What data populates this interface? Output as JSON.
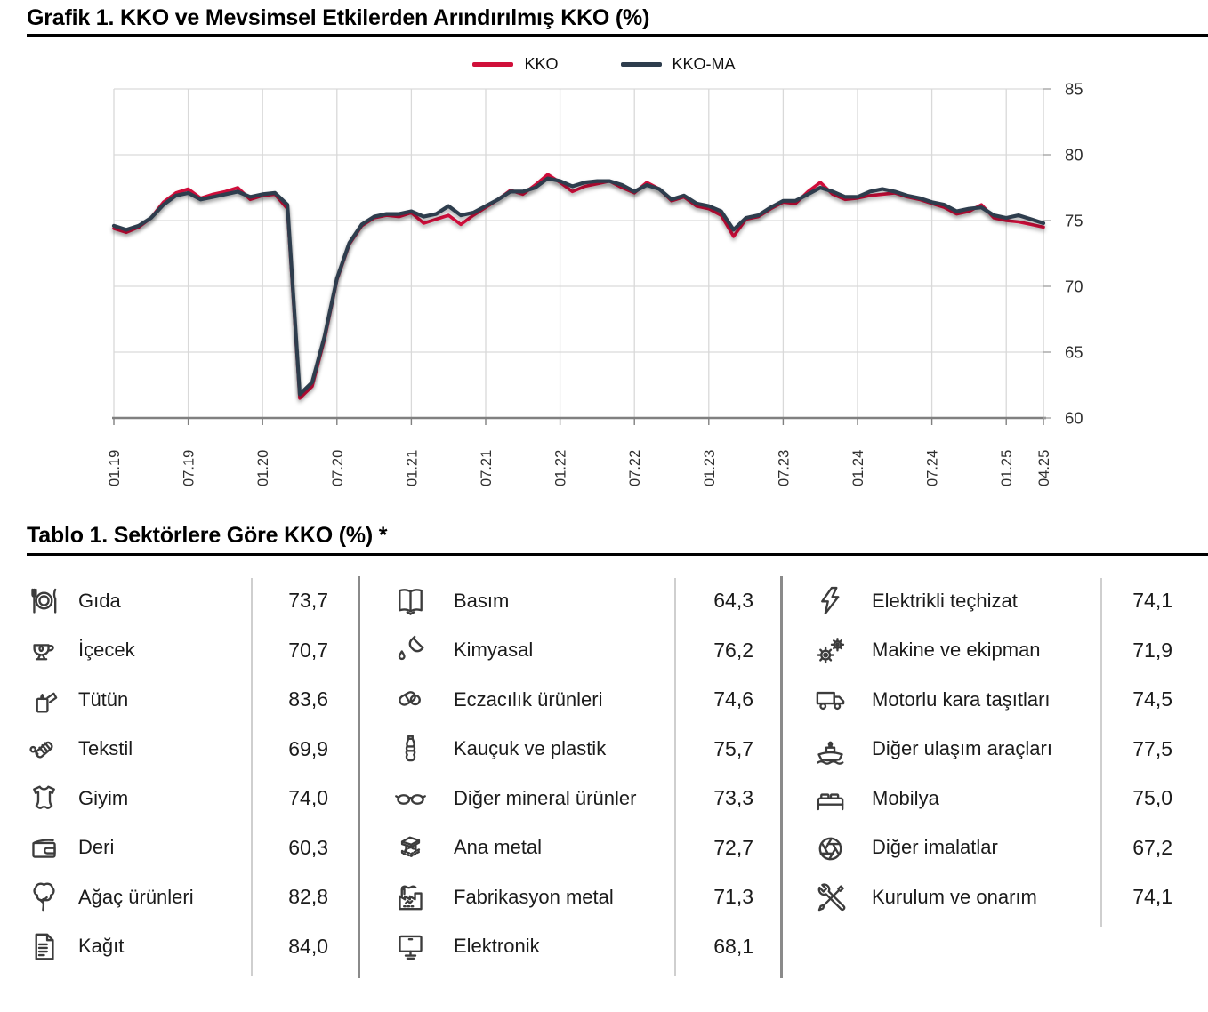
{
  "chart": {
    "title": "Grafik 1. KKO ve Mevsimsel Etkilerden Arındırılmış KKO (%)",
    "legend": [
      {
        "label": "KKO",
        "color": "#d0103a"
      },
      {
        "label": "KKO-MA",
        "color": "#2e3d4d"
      }
    ]
  },
  "chart_data": {
    "type": "line",
    "title": "Grafik 1. KKO ve Mevsimsel Etkilerden Arındırılmış KKO (%)",
    "x_tick_labels": [
      "01.19",
      "07.19",
      "01.20",
      "07.20",
      "01.21",
      "07.21",
      "01.22",
      "07.22",
      "01.23",
      "07.23",
      "01.24",
      "07.24",
      "01.25",
      "04.25"
    ],
    "x_tick_months": [
      0,
      6,
      12,
      18,
      24,
      30,
      36,
      42,
      48,
      54,
      60,
      66,
      72,
      75
    ],
    "ylim": [
      60,
      85
    ],
    "yticks": [
      60,
      65,
      70,
      75,
      80,
      85
    ],
    "grid": true,
    "legend_position": "top",
    "colors": {
      "grid": "#d9d9d9",
      "axis": "#808080",
      "tick_text": "#303030"
    },
    "series": [
      {
        "name": "KKO",
        "color": "#d0103a",
        "width": 3.6,
        "values": [
          74.4,
          74.1,
          74.5,
          75.2,
          76.4,
          77.1,
          77.4,
          76.7,
          77.0,
          77.2,
          77.5,
          76.6,
          76.9,
          77.0,
          75.9,
          61.5,
          62.4,
          66.0,
          70.5,
          73.2,
          74.6,
          75.2,
          75.4,
          75.3,
          75.6,
          74.8,
          75.1,
          75.4,
          74.7,
          75.4,
          76.0,
          76.6,
          77.3,
          77.0,
          77.7,
          78.5,
          77.9,
          77.2,
          77.6,
          77.8,
          78.0,
          77.5,
          77.1,
          77.9,
          77.4,
          76.5,
          76.8,
          76.1,
          75.9,
          75.4,
          73.8,
          75.1,
          75.3,
          75.9,
          76.4,
          76.3,
          77.2,
          77.9,
          77.0,
          76.6,
          76.7,
          76.9,
          77.0,
          77.1,
          76.8,
          76.6,
          76.3,
          76.0,
          75.5,
          75.7,
          76.2,
          75.2,
          75.0,
          74.9,
          74.7,
          74.5
        ]
      },
      {
        "name": "KKO-MA",
        "color": "#2e3d4d",
        "width": 4.2,
        "values": [
          74.6,
          74.3,
          74.6,
          75.2,
          76.2,
          76.9,
          77.1,
          76.6,
          76.8,
          77.0,
          77.2,
          76.8,
          77.0,
          77.1,
          76.2,
          61.8,
          62.7,
          66.2,
          70.6,
          73.3,
          74.7,
          75.3,
          75.5,
          75.5,
          75.7,
          75.3,
          75.5,
          76.1,
          75.4,
          75.6,
          76.1,
          76.6,
          77.2,
          77.2,
          77.5,
          78.2,
          78.0,
          77.6,
          77.9,
          78.0,
          78.0,
          77.7,
          77.2,
          77.7,
          77.4,
          76.6,
          76.9,
          76.3,
          76.1,
          75.7,
          74.3,
          75.2,
          75.4,
          76.0,
          76.5,
          76.5,
          77.0,
          77.5,
          77.2,
          76.8,
          76.8,
          77.2,
          77.4,
          77.2,
          76.9,
          76.7,
          76.4,
          76.2,
          75.7,
          75.9,
          76.0,
          75.4,
          75.2,
          75.4,
          75.1,
          74.8
        ]
      }
    ]
  },
  "table": {
    "title": "Tablo 1. Sektörlere Göre KKO (%) *",
    "columns": [
      {
        "rows": [
          {
            "icon": "food-icon",
            "label": "Gıda",
            "value": "73,7"
          },
          {
            "icon": "beverage-icon",
            "label": "İçecek",
            "value": "70,7"
          },
          {
            "icon": "tobacco-icon",
            "label": "Tütün",
            "value": "83,6"
          },
          {
            "icon": "textile-icon",
            "label": "Tekstil",
            "value": "69,9"
          },
          {
            "icon": "clothing-icon",
            "label": "Giyim",
            "value": "74,0"
          },
          {
            "icon": "leather-icon",
            "label": "Deri",
            "value": "60,3"
          },
          {
            "icon": "wood-icon",
            "label": "Ağaç ürünleri",
            "value": "82,8"
          },
          {
            "icon": "paper-icon",
            "label": "Kağıt",
            "value": "84,0"
          }
        ]
      },
      {
        "rows": [
          {
            "icon": "printing-icon",
            "label": "Basım",
            "value": "64,3"
          },
          {
            "icon": "chemical-icon",
            "label": "Kimyasal",
            "value": "76,2"
          },
          {
            "icon": "pharma-icon",
            "label": "Eczacılık ürünleri",
            "value": "74,6"
          },
          {
            "icon": "plastic-bottle-icon",
            "label": "Kauçuk ve plastik",
            "value": "75,7"
          },
          {
            "icon": "glasses-icon",
            "label": "Diğer mineral ürünler",
            "value": "73,3"
          },
          {
            "icon": "steel-beam-icon",
            "label": "Ana metal",
            "value": "72,7"
          },
          {
            "icon": "factory-icon",
            "label": "Fabrikasyon metal",
            "value": "71,3"
          },
          {
            "icon": "monitor-icon",
            "label": "Elektronik",
            "value": "68,1"
          }
        ]
      },
      {
        "rows": [
          {
            "icon": "lightning-icon",
            "label": "Elektrikli teçhizat",
            "value": "74,1"
          },
          {
            "icon": "gears-icon",
            "label": "Makine ve ekipman",
            "value": "71,9"
          },
          {
            "icon": "truck-icon",
            "label": "Motorlu kara taşıtları",
            "value": "74,5"
          },
          {
            "icon": "ship-icon",
            "label": "Diğer ulaşım araçları",
            "value": "77,5"
          },
          {
            "icon": "bed-icon",
            "label": "Mobilya",
            "value": "75,0"
          },
          {
            "icon": "aperture-icon",
            "label": "Diğer imalatlar",
            "value": "67,2"
          },
          {
            "icon": "tools-icon",
            "label": "Kurulum ve onarım",
            "value": "74,1"
          }
        ]
      }
    ]
  }
}
